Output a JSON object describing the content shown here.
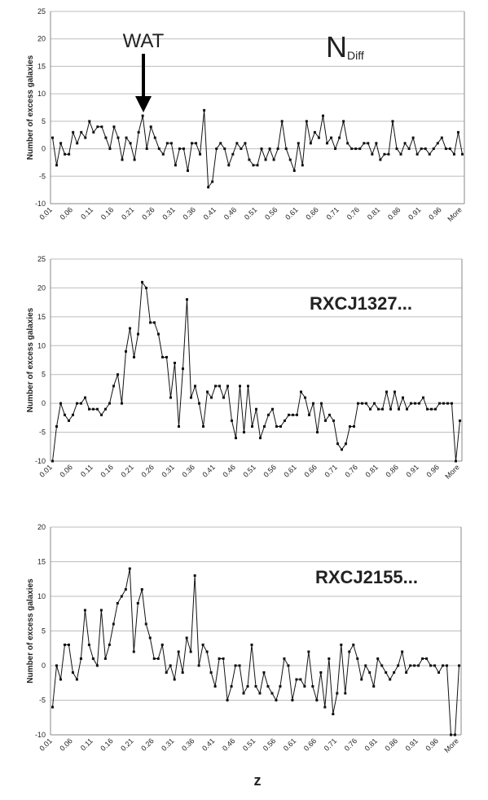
{
  "chart_data": [
    {
      "type": "line",
      "ylabel": "Number of excess galaxies",
      "annotation": "WAT",
      "title": "N",
      "title_subscript": "Diff",
      "categories": [
        "0.01",
        null,
        null,
        null,
        null,
        "0.06",
        null,
        null,
        null,
        null,
        "0.11",
        null,
        null,
        null,
        null,
        "0.16",
        null,
        null,
        null,
        null,
        "0.21",
        null,
        null,
        null,
        null,
        "0.26",
        null,
        null,
        null,
        null,
        "0.31",
        null,
        null,
        null,
        null,
        "0.36",
        null,
        null,
        null,
        null,
        "0.41",
        null,
        null,
        null,
        null,
        "0.46",
        null,
        null,
        null,
        null,
        "0.51",
        null,
        null,
        null,
        null,
        "0.56",
        null,
        null,
        null,
        null,
        "0.61",
        null,
        null,
        null,
        null,
        "0.66",
        null,
        null,
        null,
        null,
        "0.71",
        null,
        null,
        null,
        null,
        "0.76",
        null,
        null,
        null,
        null,
        "0.81",
        null,
        null,
        null,
        null,
        "0.86",
        null,
        null,
        null,
        null,
        "0.91",
        null,
        null,
        null,
        null,
        "0.96",
        null,
        null,
        null,
        null,
        "More"
      ],
      "values": [
        2,
        -3,
        1,
        -1,
        -1,
        3,
        1,
        3,
        2,
        5,
        3,
        4,
        4,
        2,
        0,
        4,
        2,
        -2,
        2,
        1,
        -2,
        3,
        6,
        0,
        4,
        2,
        0,
        -1,
        1,
        1,
        -3,
        0,
        0,
        -4,
        1,
        1,
        -1,
        7,
        -7,
        -6,
        0,
        1,
        0,
        -3,
        -1,
        1,
        0,
        1,
        -2,
        -3,
        -3,
        0,
        -2,
        0,
        -2,
        0,
        5,
        0,
        -2,
        -4,
        1,
        -3,
        5,
        1,
        3,
        2,
        6,
        1,
        2,
        0,
        2,
        5,
        1,
        0,
        0,
        0,
        1,
        1,
        -1,
        1,
        -2,
        -1,
        -1,
        5,
        0,
        -1,
        1,
        0,
        2,
        -1,
        0,
        0,
        -1,
        0,
        1,
        2,
        0,
        0,
        -1,
        3,
        -1
      ],
      "color": "#111111",
      "ylim": [
        -10,
        25
      ],
      "yticks": [
        -10,
        -5,
        0,
        5,
        10,
        15,
        20,
        25
      ],
      "grid": true
    },
    {
      "type": "line",
      "ylabel": "Number of excess galaxies",
      "title": "RXCJ1327...",
      "categories": [
        "0.01",
        null,
        null,
        null,
        null,
        "0.06",
        null,
        null,
        null,
        null,
        "0.11",
        null,
        null,
        null,
        null,
        "0.16",
        null,
        null,
        null,
        null,
        "0.21",
        null,
        null,
        null,
        null,
        "0.26",
        null,
        null,
        null,
        null,
        "0.31",
        null,
        null,
        null,
        null,
        "0.36",
        null,
        null,
        null,
        null,
        "0.41",
        null,
        null,
        null,
        null,
        "0.46",
        null,
        null,
        null,
        null,
        "0.51",
        null,
        null,
        null,
        null,
        "0.56",
        null,
        null,
        null,
        null,
        "0.61",
        null,
        null,
        null,
        null,
        "0.66",
        null,
        null,
        null,
        null,
        "0.71",
        null,
        null,
        null,
        null,
        "0.76",
        null,
        null,
        null,
        null,
        "0.81",
        null,
        null,
        null,
        null,
        "0.86",
        null,
        null,
        null,
        null,
        "0.91",
        null,
        null,
        null,
        null,
        "0.96",
        null,
        null,
        null,
        null,
        "More"
      ],
      "values": [
        -10,
        -4,
        0,
        -2,
        -3,
        -2,
        0,
        0,
        1,
        -1,
        -1,
        -1,
        -2,
        -1,
        0,
        3,
        5,
        0,
        9,
        13,
        8,
        12,
        21,
        20,
        14,
        14,
        12,
        8,
        8,
        1,
        7,
        -4,
        6,
        18,
        1,
        3,
        0,
        -4,
        2,
        1,
        3,
        3,
        1,
        3,
        -3,
        -6,
        3,
        -5,
        3,
        -4,
        -1,
        -6,
        -4,
        -2,
        -1,
        -4,
        -4,
        -3,
        -2,
        -2,
        -2,
        2,
        1,
        -2,
        0,
        -5,
        0,
        -3,
        -2,
        -3,
        -7,
        -8,
        -7,
        -4,
        -4,
        0,
        0,
        0,
        -1,
        0,
        -1,
        -1,
        2,
        -1,
        2,
        -1,
        1,
        -1,
        0,
        0,
        0,
        1,
        -1,
        -1,
        -1,
        0,
        0,
        0,
        0,
        -10,
        -3
      ],
      "color": "#111111",
      "ylim": [
        -10,
        25
      ],
      "yticks": [
        -10,
        -5,
        0,
        5,
        10,
        15,
        20,
        25
      ],
      "grid": true
    },
    {
      "type": "line",
      "ylabel": "Number of excess galaxies",
      "title": "RXCJ2155...",
      "xlabel": "z",
      "categories": [
        "0.01",
        null,
        null,
        null,
        null,
        "0.06",
        null,
        null,
        null,
        null,
        "0.11",
        null,
        null,
        null,
        null,
        "0.16",
        null,
        null,
        null,
        null,
        "0.21",
        null,
        null,
        null,
        null,
        "0.26",
        null,
        null,
        null,
        null,
        "0.31",
        null,
        null,
        null,
        null,
        "0.36",
        null,
        null,
        null,
        null,
        "0.41",
        null,
        null,
        null,
        null,
        "0.46",
        null,
        null,
        null,
        null,
        "0.51",
        null,
        null,
        null,
        null,
        "0.56",
        null,
        null,
        null,
        null,
        "0.61",
        null,
        null,
        null,
        null,
        "0.66",
        null,
        null,
        null,
        null,
        "0.71",
        null,
        null,
        null,
        null,
        "0.76",
        null,
        null,
        null,
        null,
        "0.81",
        null,
        null,
        null,
        null,
        "0.86",
        null,
        null,
        null,
        null,
        "0.91",
        null,
        null,
        null,
        null,
        "0.96",
        null,
        null,
        null,
        null,
        "More"
      ],
      "values": [
        -6,
        0,
        -2,
        3,
        3,
        -1,
        -2,
        1,
        8,
        3,
        1,
        0,
        8,
        1,
        3,
        6,
        9,
        10,
        11,
        14,
        2,
        9,
        11,
        6,
        4,
        1,
        1,
        3,
        -1,
        0,
        -2,
        2,
        -1,
        4,
        2,
        13,
        0,
        3,
        2,
        -1,
        -3,
        1,
        1,
        -5,
        -3,
        0,
        0,
        -4,
        -3,
        3,
        -3,
        -4,
        -1,
        -3,
        -4,
        -5,
        -3,
        1,
        0,
        -5,
        -2,
        -2,
        -3,
        2,
        -3,
        -5,
        -1,
        -6,
        1,
        -7,
        -4,
        3,
        -4,
        2,
        3,
        1,
        -2,
        0,
        -1,
        -3,
        1,
        0,
        -1,
        -2,
        -1,
        0,
        2,
        -1,
        0,
        0,
        0,
        1,
        1,
        0,
        0,
        -1,
        0,
        0,
        -10,
        -10,
        0
      ],
      "color": "#111111",
      "ylim": [
        -10,
        20
      ],
      "yticks": [
        -10,
        -5,
        0,
        5,
        10,
        15,
        20
      ],
      "grid": true
    }
  ]
}
